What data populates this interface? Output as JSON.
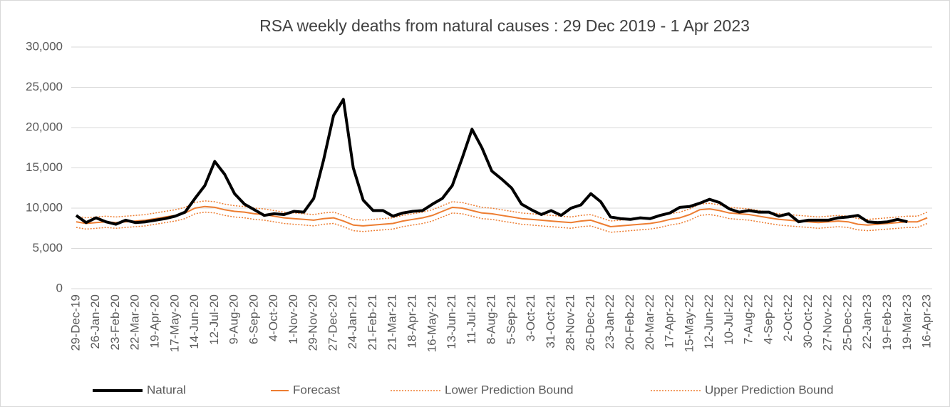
{
  "chart_data": {
    "type": "line",
    "title": "RSA weekly deaths from natural causes : 29 Dec 2019 - 1 Apr 2023",
    "categories": [
      "29-Dec-19",
      null,
      "26-Jan-20",
      null,
      "23-Feb-20",
      null,
      "22-Mar-20",
      null,
      "19-Apr-20",
      null,
      "17-May-20",
      null,
      "14-Jun-20",
      null,
      "12-Jul-20",
      null,
      "9-Aug-20",
      null,
      "6-Sep-20",
      null,
      "4-Oct-20",
      null,
      "1-Nov-20",
      null,
      "29-Nov-20",
      null,
      "27-Dec-20",
      null,
      "24-Jan-21",
      null,
      "21-Feb-21",
      null,
      "21-Mar-21",
      null,
      "18-Apr-21",
      null,
      "16-May-21",
      null,
      "13-Jun-21",
      null,
      "11-Jul-21",
      null,
      "8-Aug-21",
      null,
      "5-Sep-21",
      null,
      "3-Oct-21",
      null,
      "31-Oct-21",
      null,
      "28-Nov-21",
      null,
      "26-Dec-21",
      null,
      "23-Jan-22",
      null,
      "20-Feb-22",
      null,
      "20-Mar-22",
      null,
      "17-Apr-22",
      null,
      "15-May-22",
      null,
      "12-Jun-22",
      null,
      "10-Jul-22",
      null,
      "7-Aug-22",
      null,
      "4-Sep-22",
      null,
      "2-Oct-22",
      null,
      "30-Oct-22",
      null,
      "27-Nov-22",
      null,
      "25-Dec-22",
      null,
      "22-Jan-23",
      null,
      "19-Feb-23",
      null,
      "19-Mar-23",
      null,
      "16-Apr-23"
    ],
    "series": [
      {
        "name": "Natural",
        "color": "#000000",
        "width": 4,
        "style": "solid",
        "values": [
          9100,
          8200,
          8800,
          8300,
          8000,
          8500,
          8200,
          8300,
          8500,
          8700,
          9000,
          9500,
          11200,
          12800,
          15800,
          14200,
          11800,
          10500,
          9800,
          9100,
          9300,
          9200,
          9600,
          9500,
          11200,
          16000,
          21500,
          23500,
          15000,
          11000,
          9700,
          9700,
          9000,
          9400,
          9600,
          9700,
          10500,
          11200,
          12800,
          16200,
          19800,
          17500,
          14600,
          13600,
          12500,
          10500,
          9800,
          9200,
          9700,
          9100,
          10000,
          10400,
          11800,
          10800,
          8900,
          8700,
          8600,
          8800,
          8700,
          9100,
          9400,
          10100,
          10200,
          10600,
          11100,
          10700,
          9900,
          9500,
          9700,
          9500,
          9500,
          9000,
          9300,
          8300,
          8500,
          8500,
          8500,
          8800,
          8900,
          9100,
          8300,
          8200,
          8300,
          8600,
          8300,
          null,
          null
        ]
      },
      {
        "name": "Forecast",
        "color": "#ed7d31",
        "width": 2,
        "style": "solid",
        "values": [
          8300,
          8100,
          8200,
          8300,
          8200,
          8300,
          8400,
          8500,
          8700,
          8900,
          9100,
          9400,
          10000,
          10200,
          10100,
          9800,
          9600,
          9500,
          9300,
          9200,
          9000,
          8800,
          8700,
          8600,
          8500,
          8700,
          8800,
          8400,
          7900,
          7800,
          7900,
          8000,
          8100,
          8400,
          8600,
          8800,
          9100,
          9600,
          10100,
          10000,
          9700,
          9400,
          9300,
          9100,
          8900,
          8700,
          8600,
          8500,
          8400,
          8300,
          8200,
          8400,
          8500,
          8100,
          7700,
          7800,
          7900,
          8000,
          8100,
          8300,
          8600,
          8800,
          9200,
          9800,
          9900,
          9700,
          9400,
          9300,
          9200,
          9000,
          8800,
          8600,
          8500,
          8400,
          8300,
          8200,
          8300,
          8400,
          8300,
          8000,
          7900,
          8000,
          8100,
          8200,
          8300,
          8300,
          8800
        ]
      },
      {
        "name": "Lower Prediction Bound",
        "color": "#ed7d31",
        "width": 1.5,
        "style": "dotted",
        "values": [
          7600,
          7400,
          7500,
          7600,
          7500,
          7600,
          7700,
          7800,
          8000,
          8200,
          8400,
          8700,
          9300,
          9500,
          9400,
          9100,
          8900,
          8800,
          8600,
          8500,
          8300,
          8100,
          8000,
          7900,
          7800,
          8000,
          8100,
          7700,
          7200,
          7100,
          7200,
          7300,
          7400,
          7700,
          7900,
          8100,
          8400,
          8900,
          9400,
          9300,
          9000,
          8700,
          8600,
          8400,
          8200,
          8000,
          7900,
          7800,
          7700,
          7600,
          7500,
          7700,
          7800,
          7400,
          7000,
          7100,
          7200,
          7300,
          7400,
          7600,
          7900,
          8100,
          8500,
          9100,
          9200,
          9000,
          8700,
          8600,
          8500,
          8300,
          8100,
          7900,
          7800,
          7700,
          7600,
          7500,
          7600,
          7700,
          7600,
          7300,
          7200,
          7300,
          7400,
          7500,
          7600,
          7600,
          8100
        ]
      },
      {
        "name": "Upper Prediction Bound",
        "color": "#ed7d31",
        "width": 1.5,
        "style": "dotted",
        "values": [
          9000,
          8800,
          8900,
          9000,
          8900,
          9000,
          9100,
          9200,
          9400,
          9600,
          9800,
          10100,
          10700,
          10900,
          10800,
          10500,
          10300,
          10200,
          10000,
          9900,
          9700,
          9500,
          9400,
          9300,
          9200,
          9400,
          9500,
          9100,
          8600,
          8500,
          8600,
          8700,
          8800,
          9100,
          9300,
          9500,
          9800,
          10300,
          10800,
          10700,
          10400,
          10100,
          10000,
          9800,
          9600,
          9400,
          9300,
          9200,
          9100,
          9000,
          8900,
          9100,
          9200,
          8800,
          8400,
          8500,
          8600,
          8700,
          8800,
          9000,
          9300,
          9500,
          9900,
          10500,
          10600,
          10400,
          10100,
          10000,
          9900,
          9700,
          9500,
          9300,
          9200,
          9100,
          9000,
          8900,
          9000,
          9100,
          9000,
          8700,
          8600,
          8700,
          8800,
          8900,
          9000,
          9000,
          9500
        ]
      }
    ],
    "ylim": [
      0,
      30000
    ],
    "yticks": [
      0,
      {
        "value": 5000,
        "label": "5,000"
      },
      {
        "value": 10000,
        "label": "10,000"
      },
      {
        "value": 15000,
        "label": "15,000"
      },
      {
        "value": 20000,
        "label": "20,000"
      },
      {
        "value": 25000,
        "label": "25,000"
      },
      {
        "value": 30000,
        "label": "30,000"
      }
    ],
    "grid": true,
    "legend": "bottom"
  }
}
